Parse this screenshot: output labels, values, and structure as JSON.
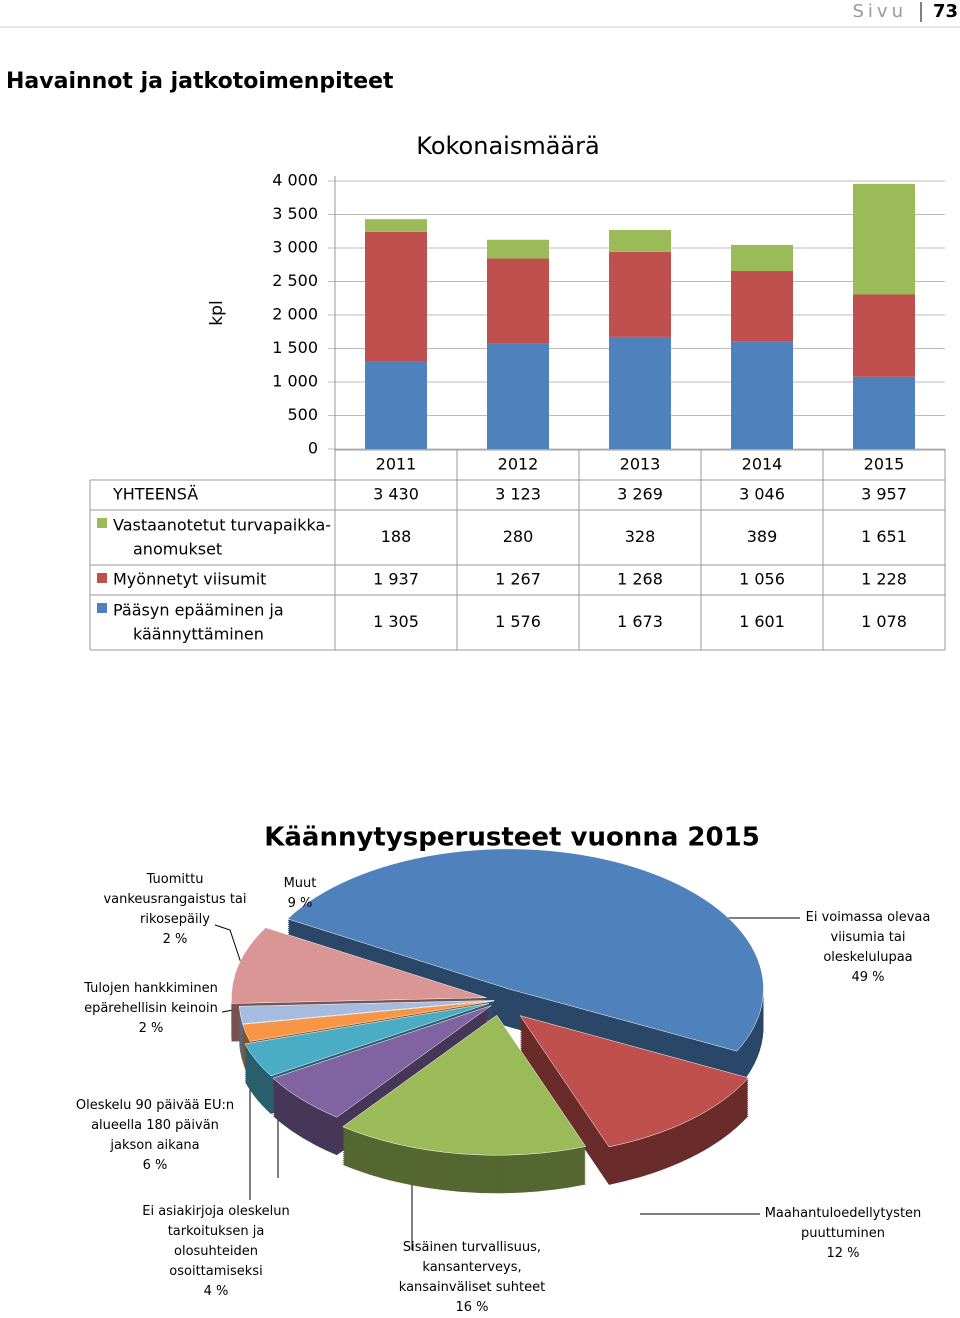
{
  "header": {
    "page_label": "Sivu",
    "page_number": "73"
  },
  "heading": "Havainnot ja jatkotoimenpiteet",
  "chart_data": [
    {
      "type": "bar",
      "stacked": true,
      "title": "Kokonaismäärä",
      "ylabel": "kpl",
      "categories": [
        "2011",
        "2012",
        "2013",
        "2014",
        "2015"
      ],
      "series": [
        {
          "name": "Pääsyn epääminen ja käännyttäminen",
          "color": "#4f81bd",
          "values": [
            1305,
            1576,
            1673,
            1601,
            1078
          ],
          "value_labels": [
            "1 305",
            "1 576",
            "1 673",
            "1 601",
            "1 078"
          ]
        },
        {
          "name": "Myönnetyt viisumit",
          "color": "#c0504d",
          "values": [
            1937,
            1267,
            1268,
            1056,
            1228
          ],
          "value_labels": [
            "1 937",
            "1 267",
            "1 268",
            "1 056",
            "1 228"
          ]
        },
        {
          "name": "Vastaanotetut turvapaikka-anomukset",
          "color": "#9bbb59",
          "values": [
            188,
            280,
            328,
            389,
            1651
          ],
          "value_labels": [
            "188",
            "280",
            "328",
            "389",
            "1 651"
          ]
        }
      ],
      "totals": {
        "name": "YHTEENSÄ",
        "values": [
          3430,
          3123,
          3269,
          3046,
          3957
        ],
        "value_labels": [
          "3 430",
          "3 123",
          "3 269",
          "3 046",
          "3 957"
        ]
      },
      "ylim": [
        0,
        4000
      ],
      "yticks": [
        0,
        500,
        {
          "value": 1000,
          "label": "1 000"
        },
        {
          "value": 1500,
          "label": "1 500"
        },
        {
          "value": 2000,
          "label": "2 000"
        },
        {
          "value": 2500,
          "label": "2 500"
        },
        {
          "value": 3000,
          "label": "3 000"
        },
        {
          "value": 3500,
          "label": "3 500"
        },
        {
          "value": 4000,
          "label": "4 000"
        }
      ],
      "grid": true
    },
    {
      "type": "pie",
      "title": "Käännytysperusteet vuonna 2015",
      "categories": [
        "Ei voimassa olevaa viisumia tai oleskelulupaa",
        "Maahantuloedellytysten puuttuminen",
        "Sisäinen turvallisuus, kansanterveys, kansainväliset suhteet",
        "Oleskelu 90 päivää EU:n alueella 180 päivän jakson aikana",
        "Ei asiakirjoja oleskelun tarkoituksen ja olosuhteiden osoittamiseksi",
        "Tulojen hankkiminen epärehellisin keinoin",
        "Tuomittu vankeusrangaistus tai rikosepäily",
        "Muut"
      ],
      "values": [
        49,
        12,
        16,
        6,
        4,
        2,
        2,
        9
      ],
      "value_labels": [
        "49 %",
        "12 %",
        "16 %",
        "6 %",
        "4 %",
        "2 %",
        "2 %",
        "9 %"
      ],
      "colors": [
        "#4f81bd",
        "#c0504d",
        "#9bbb59",
        "#8064a2",
        "#4bacc6",
        "#f79646",
        "#a5bce0",
        "#d99694"
      ]
    }
  ]
}
